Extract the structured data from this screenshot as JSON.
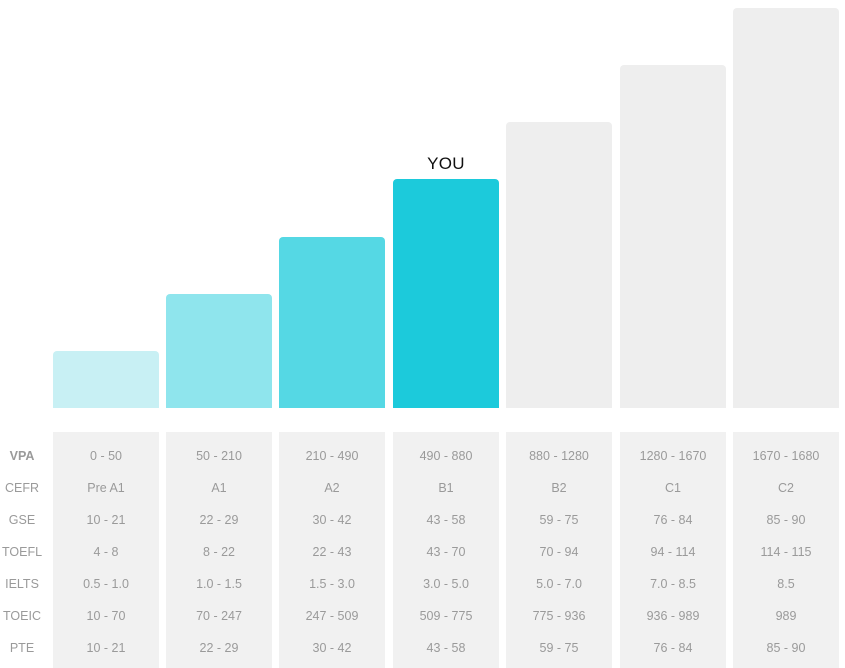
{
  "marker_label": "YOU",
  "current_level_index": 3,
  "levels": [
    {
      "cefr": "Pre A1",
      "color": "#c8f0f4",
      "active": true
    },
    {
      "cefr": "A1",
      "color": "#8fe5ed",
      "active": true
    },
    {
      "cefr": "A2",
      "color": "#55d8e4",
      "active": true
    },
    {
      "cefr": "B1",
      "color": "#1ccadb",
      "active": true
    },
    {
      "cefr": "B2",
      "color": "#eeeeee",
      "active": false
    },
    {
      "cefr": "C1",
      "color": "#eeeeee",
      "active": false
    },
    {
      "cefr": "C2",
      "color": "#eeeeee",
      "active": false
    }
  ],
  "table": {
    "rows": [
      {
        "label": "VPA",
        "bold": true,
        "values": [
          "0 - 50",
          "50 - 210",
          "210 - 490",
          "490 - 880",
          "880 - 1280",
          "1280 - 1670",
          "1670 - 1680"
        ]
      },
      {
        "label": "CEFR",
        "bold": false,
        "values": [
          "Pre A1",
          "A1",
          "A2",
          "B1",
          "B2",
          "C1",
          "C2"
        ]
      },
      {
        "label": "GSE",
        "bold": false,
        "values": [
          "10 - 21",
          "22 - 29",
          "30 - 42",
          "43 - 58",
          "59 - 75",
          "76 - 84",
          "85 - 90"
        ]
      },
      {
        "label": "TOEFL",
        "bold": false,
        "values": [
          "4 - 8",
          "8 - 22",
          "22 - 43",
          "43 - 70",
          "70 - 94",
          "94 - 114",
          "114 - 115"
        ]
      },
      {
        "label": "IELTS",
        "bold": false,
        "values": [
          "0.5 - 1.0",
          "1.0 - 1.5",
          "1.5 - 3.0",
          "3.0 - 5.0",
          "5.0 - 7.0",
          "7.0 - 8.5",
          "8.5"
        ]
      },
      {
        "label": "TOEIC",
        "bold": false,
        "values": [
          "10 - 70",
          "70 - 247",
          "247 - 509",
          "509 - 775",
          "775 - 936",
          "936 - 989",
          "989"
        ]
      },
      {
        "label": "PTE",
        "bold": false,
        "values": [
          "10 - 21",
          "22 - 29",
          "30 - 42",
          "43 - 58",
          "59 - 75",
          "76 - 84",
          "85 - 90"
        ]
      }
    ]
  }
}
